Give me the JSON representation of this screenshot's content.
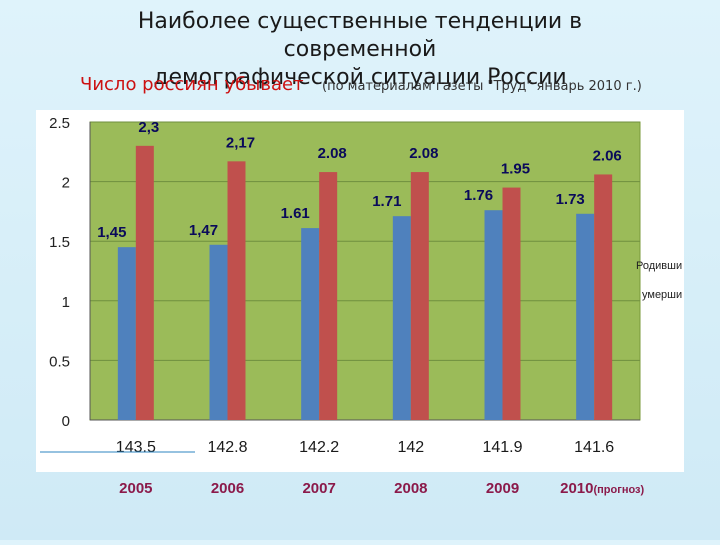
{
  "header": {
    "title_line1": "Наиболее существенные тенденции в современной",
    "title_line2": "демографической ситуации России",
    "subtitle": "Число россиян убывает",
    "source_note": "(по материалам газеты \"Труд\" январь 2010 г.)"
  },
  "chart_data": {
    "type": "bar",
    "categories": [
      "2005",
      "2006",
      "2007",
      "2008",
      "2009",
      "2010(прогноз)"
    ],
    "category_main": [
      "2005",
      "2006",
      "2007",
      "2008",
      "2009",
      "2010"
    ],
    "category_suffix": [
      "",
      "",
      "",
      "",
      "",
      "(прогноз)"
    ],
    "population_labels": [
      "143.5",
      "142.8",
      "142.2",
      "142",
      "141.9",
      "141.6"
    ],
    "series": [
      {
        "name": "Родивши",
        "color": "#4f81bd",
        "values": [
          1.45,
          1.47,
          1.61,
          1.71,
          1.76,
          1.73
        ],
        "labels": [
          "1,45",
          "1,47",
          "1.61",
          "1.71",
          "1.76",
          "1.73"
        ]
      },
      {
        "name": "умерши",
        "color": "#c0504d",
        "values": [
          2.3,
          2.17,
          2.08,
          2.08,
          1.95,
          2.06
        ],
        "labels": [
          "2,3",
          "2,17",
          "2.08",
          "2.08",
          "1.95",
          "2.06"
        ]
      }
    ],
    "ylim": [
      0,
      2.5
    ],
    "yticks": [
      "0",
      "0.5",
      "1",
      "1.5",
      "2",
      "2.5"
    ],
    "ytick_values": [
      0,
      0.5,
      1,
      1.5,
      2,
      2.5
    ],
    "plot_background": "#9bbb59",
    "year_label_color": "#8b1a4a",
    "data_label_color": "#0a0a5a",
    "grid": true,
    "legend_position": "right"
  }
}
